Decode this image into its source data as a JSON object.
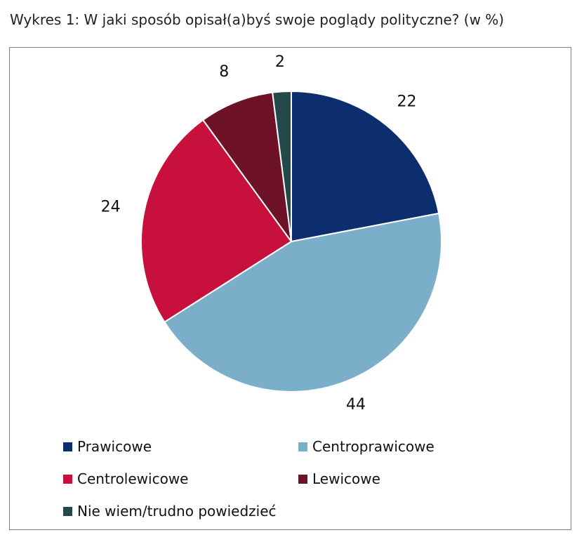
{
  "title": "Wykres 1: W jaki sposób opisał(a)byś swoje poglądy polityczne? (w %)",
  "chart_data": {
    "type": "pie",
    "categories": [
      "Prawicowe",
      "Centroprawicowe",
      "Centrolewicowe",
      "Lewicowe",
      "Nie wiem/trudno powiedzieć"
    ],
    "values": [
      22,
      44,
      24,
      8,
      2
    ],
    "colors": [
      "#0d2e6e",
      "#7bafc9",
      "#c8103c",
      "#6e1228",
      "#23494a"
    ],
    "legend_position": "bottom",
    "data_labels": [
      "22",
      "44",
      "24",
      "8",
      "2"
    ]
  }
}
